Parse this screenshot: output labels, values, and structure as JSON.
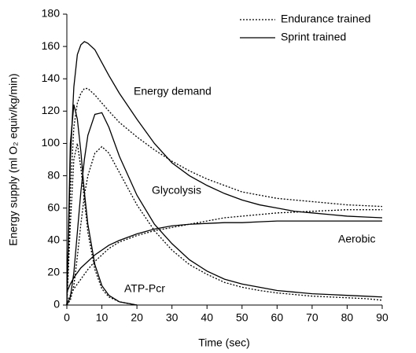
{
  "chart_data": {
    "type": "line",
    "xlabel": "Time (sec)",
    "ylabel": "Energy supply (ml O₂ equiv/kg/min)",
    "xlim": [
      0,
      90
    ],
    "ylim": [
      0,
      180
    ],
    "xticks": [
      0,
      10,
      20,
      30,
      40,
      50,
      60,
      70,
      80,
      90
    ],
    "yticks": [
      0,
      20,
      40,
      60,
      80,
      100,
      120,
      140,
      160,
      180
    ],
    "legend": "upper right",
    "annotations": [
      "Energy demand",
      "Glycolysis",
      "Aerobic",
      "ATP-Pcr"
    ],
    "x": [
      0,
      1,
      2,
      3,
      4,
      5,
      6,
      8,
      10,
      12,
      15,
      20,
      25,
      30,
      35,
      40,
      45,
      50,
      55,
      60,
      65,
      70,
      75,
      80,
      85,
      90
    ],
    "series": [
      {
        "name": "Endurance trained",
        "color": "#000000",
        "dash": "dotted",
        "curves": [
          {
            "values": [
              0,
              70,
              110,
              125,
              131,
              134,
              134,
              130,
              125,
              120,
              113,
              104,
              96,
              89,
              83,
              78,
              74,
              70,
              68,
              66,
              65,
              64,
              63,
              62,
              61.5,
              61
            ]
          },
          {
            "values": [
              0,
              3,
              12,
              30,
              50,
              68,
              80,
              94,
              98,
              94,
              82,
              62,
              46,
              34,
              25,
              19,
              14,
              11,
              9,
              7.5,
              6.5,
              5.5,
              5,
              4.5,
              4,
              3
            ]
          },
          {
            "values": [
              2,
              6,
              10,
              13,
              16,
              19,
              22,
              27,
              31,
              35,
              39,
              43,
              46,
              48,
              50,
              52,
              54,
              55,
              56,
              57,
              57.5,
              58,
              58.5,
              59,
              59,
              59
            ]
          },
          {
            "values": [
              0,
              50,
              90,
              100,
              85,
              65,
              45,
              22,
              10,
              5,
              2,
              0,
              null,
              null,
              null,
              null,
              null,
              null,
              null,
              null,
              null,
              null,
              null,
              null,
              null,
              null
            ]
          }
        ]
      },
      {
        "name": "Sprint trained",
        "color": "#000000",
        "dash": "solid",
        "curves": [
          {
            "values": [
              0,
              90,
              135,
              155,
              161,
              163,
              162,
              158,
              150,
              142,
              131,
              115,
              100,
              88,
              80,
              74,
              69,
              65,
              62,
              60,
              58,
              57,
              56,
              55,
              54.5,
              54
            ]
          },
          {
            "values": [
              0,
              5,
              20,
              45,
              70,
              90,
              105,
              118,
              119,
              110,
              92,
              68,
              50,
              38,
              28,
              21,
              16,
              13,
              11,
              9,
              8,
              7,
              6.5,
              6,
              5.5,
              5
            ]
          },
          {
            "values": [
              8,
              13,
              17,
              20,
              23,
              25,
              27,
              31,
              34,
              37,
              40,
              44,
              47,
              49,
              50,
              50.5,
              51,
              51,
              51.5,
              52,
              52,
              52,
              52,
              52,
              52,
              52
            ]
          },
          {
            "values": [
              0,
              100,
              124,
              115,
              95,
              70,
              50,
              25,
              12,
              6,
              2,
              0,
              null,
              null,
              null,
              null,
              null,
              null,
              null,
              null,
              null,
              null,
              null,
              null,
              null,
              null
            ]
          }
        ]
      }
    ]
  }
}
